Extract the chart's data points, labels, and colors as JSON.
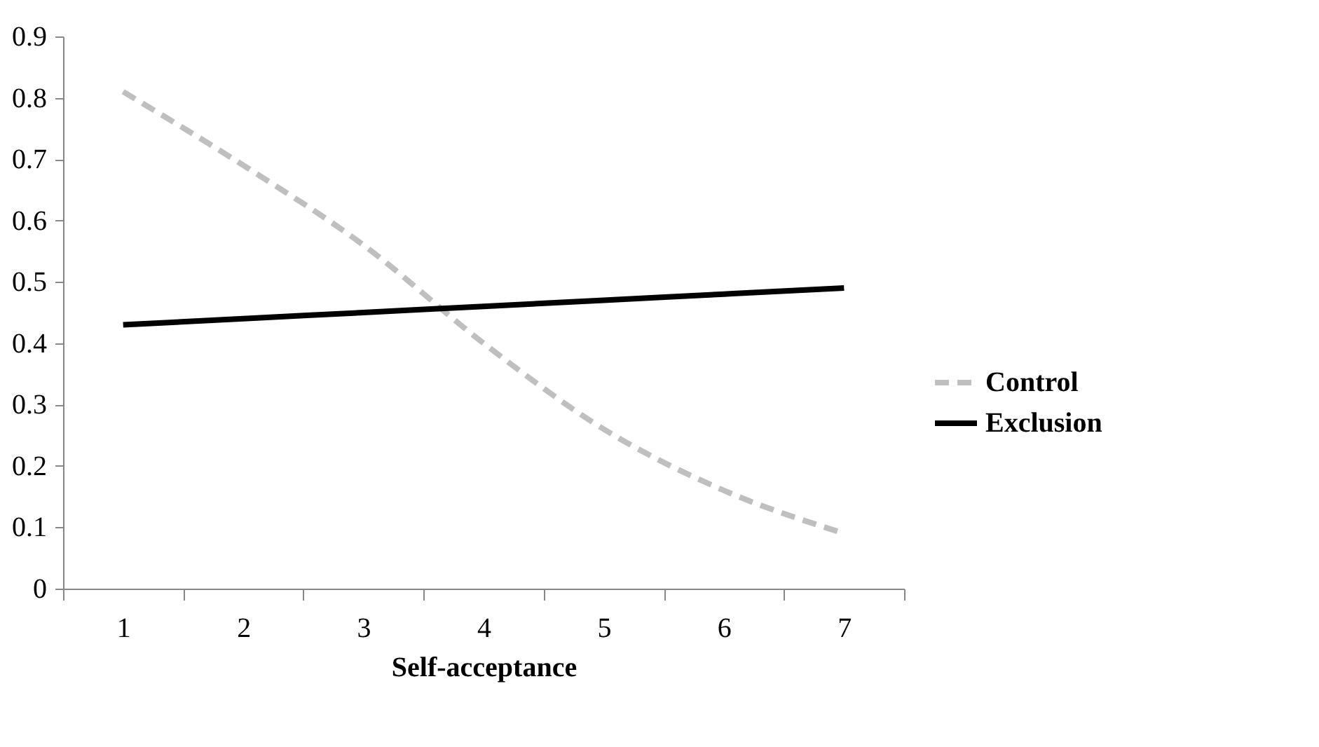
{
  "chart_data": {
    "type": "line",
    "xlabel": "Self-acceptance",
    "categories": [
      "1",
      "2",
      "3",
      "4",
      "5",
      "6",
      "7"
    ],
    "series": [
      {
        "name": "Control",
        "color": "#bfbfbf",
        "line_style": "dashed",
        "values": [
          0.81,
          0.69,
          0.56,
          0.4,
          0.26,
          0.16,
          0.09
        ]
      },
      {
        "name": "Exclusion",
        "color": "#000000",
        "line_style": "solid",
        "values": [
          0.43,
          0.44,
          0.45,
          0.46,
          0.47,
          0.48,
          0.49
        ]
      }
    ],
    "ylim": [
      0,
      0.9
    ],
    "yticks": [
      0,
      0.1,
      0.2,
      0.3,
      0.4,
      0.5,
      0.6,
      0.7,
      0.8,
      0.9
    ],
    "grid": false,
    "legend": "right"
  }
}
